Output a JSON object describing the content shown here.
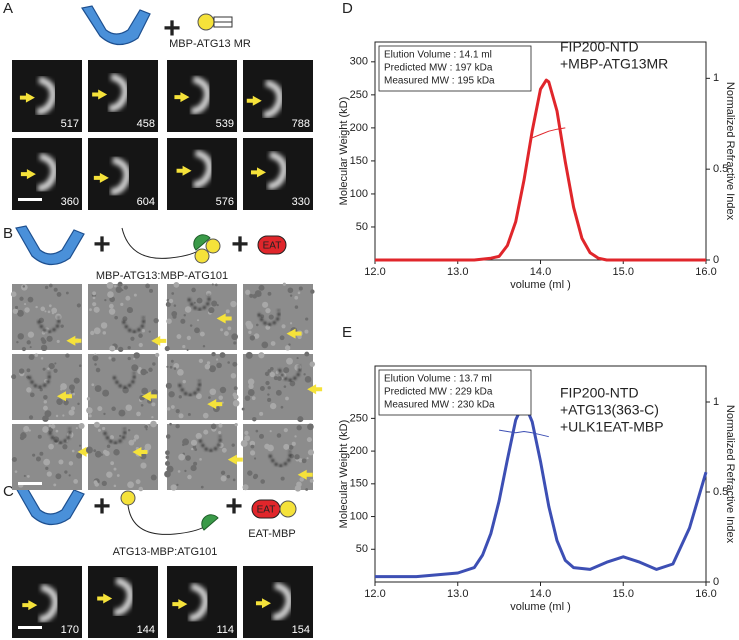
{
  "panels": {
    "A": {
      "letter": "A",
      "construct": "MBP-ATG13 MR",
      "labels": [
        517,
        458,
        539,
        788,
        360,
        604,
        576,
        330
      ]
    },
    "B": {
      "letter": "B",
      "construct": "MBP-ATG13:MBP-ATG101",
      "tag": "EAT"
    },
    "C": {
      "letter": "C",
      "construct": "ATG13-MBP:ATG101",
      "tag": "EAT",
      "tag_construct": "EAT-MBP",
      "labels": [
        170,
        144,
        114,
        154
      ]
    }
  },
  "plus": "+",
  "chart_data": [
    {
      "type": "line",
      "panel_label": "D",
      "annotations": [
        "Elution Volume : 14.1 ml",
        "Predicted MW :  197 kDa",
        "Measured MW : 195 kDa"
      ],
      "title_lines": [
        "FIP200-NTD",
        "+MBP-ATG13MR"
      ],
      "xlabel": "volume (ml )",
      "ylabel": "Molecular Weight (kD)",
      "y2label": "Normalized Refractive Index",
      "xlim": [
        12,
        16
      ],
      "xticks": [
        {
          "value": 12,
          "label": "12.0"
        },
        {
          "value": 13,
          "label": "13.0"
        },
        {
          "value": 14,
          "label": "14.0"
        },
        {
          "value": 15,
          "label": "15.0"
        },
        {
          "value": 16,
          "label": "16.0"
        }
      ],
      "ylim": [
        0,
        330
      ],
      "yticks": [
        50,
        100,
        150,
        200,
        250,
        300
      ],
      "y2lim": [
        0,
        1.2
      ],
      "y2ticks": [
        0,
        0.5,
        1
      ],
      "series": [
        {
          "color": "#e0262b",
          "axis": "y2",
          "width": 3,
          "x": [
            12.0,
            12.5,
            13.0,
            13.2,
            13.4,
            13.5,
            13.6,
            13.7,
            13.8,
            13.9,
            14.0,
            14.07,
            14.1,
            14.2,
            14.3,
            14.4,
            14.5,
            14.6,
            14.7,
            14.8,
            15.0,
            15.5,
            16.0
          ],
          "values": [
            0,
            0,
            0,
            0,
            0.01,
            0.02,
            0.08,
            0.21,
            0.44,
            0.71,
            0.94,
            0.99,
            0.98,
            0.82,
            0.54,
            0.29,
            0.12,
            0.04,
            0.01,
            0,
            0,
            0,
            0
          ]
        },
        {
          "color": "#e0262b",
          "axis": "y",
          "width": 1,
          "x": [
            13.9,
            14.0,
            14.1,
            14.2,
            14.3
          ],
          "values": [
            185,
            190,
            195,
            198,
            200
          ]
        }
      ]
    },
    {
      "type": "line",
      "panel_label": "E",
      "annotations": [
        "Elution Volume : 13.7 ml",
        "Predicted MW : 229 kDa",
        "Measured MW : 230 kDa"
      ],
      "title_lines": [
        "FIP200-NTD",
        "+ATG13(363-C)",
        "+ULK1EAT-MBP"
      ],
      "xlabel": "volume (ml )",
      "ylabel": "Molecular Weight (kD)",
      "y2label": "Normalized Refractive Index",
      "xlim": [
        12,
        16
      ],
      "xticks": [
        {
          "value": 12,
          "label": "12.0"
        },
        {
          "value": 13,
          "label": "13.0"
        },
        {
          "value": 14,
          "label": "14.0"
        },
        {
          "value": 15,
          "label": "15.0"
        },
        {
          "value": 16,
          "label": "16.0"
        }
      ],
      "ylim": [
        0,
        330
      ],
      "yticks": [
        50,
        100,
        150,
        200,
        250
      ],
      "y2lim": [
        0,
        1.2
      ],
      "y2ticks": [
        0,
        0.5,
        1
      ],
      "series": [
        {
          "color": "#3d4fb4",
          "axis": "y2",
          "width": 3,
          "x": [
            12.0,
            12.5,
            13.0,
            13.2,
            13.3,
            13.4,
            13.5,
            13.6,
            13.7,
            13.8,
            13.9,
            14.0,
            14.1,
            14.2,
            14.3,
            14.4,
            14.6,
            14.8,
            15.0,
            15.2,
            15.4,
            15.6,
            15.8,
            16.0
          ],
          "values": [
            0.03,
            0.03,
            0.05,
            0.08,
            0.15,
            0.27,
            0.45,
            0.68,
            0.9,
            1.0,
            0.89,
            0.67,
            0.42,
            0.23,
            0.12,
            0.08,
            0.07,
            0.11,
            0.14,
            0.11,
            0.07,
            0.1,
            0.3,
            0.61
          ]
        },
        {
          "color": "#3d4fb4",
          "axis": "y",
          "width": 1,
          "x": [
            13.5,
            13.6,
            13.7,
            13.8,
            13.9,
            14.0,
            14.1
          ],
          "values": [
            232,
            230,
            228,
            230,
            228,
            225,
            222
          ]
        }
      ]
    }
  ]
}
